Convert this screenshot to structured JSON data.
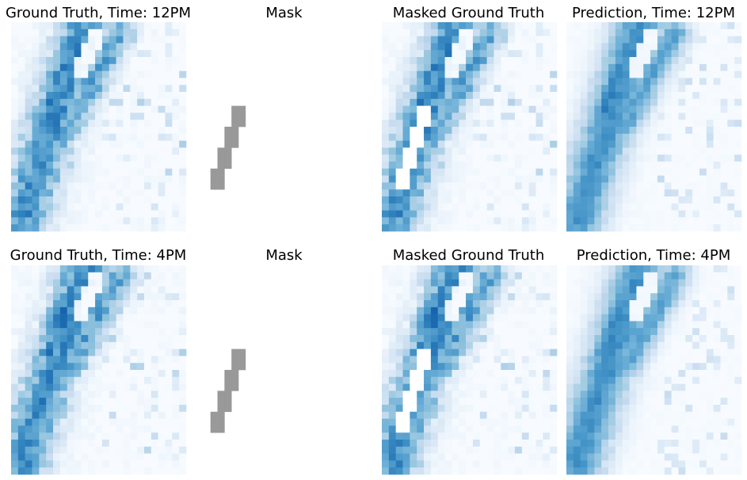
{
  "chart_data": [
    {
      "type": "heatmap",
      "title": "Ground Truth, Time: 12PM",
      "colormap": "Blues",
      "kind": "ground_truth",
      "time": "12PM"
    },
    {
      "type": "heatmap",
      "title": "Mask",
      "kind": "mask",
      "mask_color": "#999999"
    },
    {
      "type": "heatmap",
      "title": "Masked Ground Truth",
      "colormap": "Blues",
      "kind": "masked_ground_truth",
      "time": "12PM"
    },
    {
      "type": "heatmap",
      "title": "Prediction, Time: 12PM",
      "colormap": "Blues",
      "kind": "prediction",
      "time": "12PM"
    },
    {
      "type": "heatmap",
      "title": "Ground Truth, Time: 4PM",
      "colormap": "Blues",
      "kind": "ground_truth",
      "time": "4PM"
    },
    {
      "type": "heatmap",
      "title": "Mask",
      "kind": "mask",
      "mask_color": "#999999"
    },
    {
      "type": "heatmap",
      "title": "Masked Ground Truth",
      "colormap": "Blues",
      "kind": "masked_ground_truth",
      "time": "4PM"
    },
    {
      "type": "heatmap",
      "title": "Prediction, Time: 4PM",
      "colormap": "Blues",
      "kind": "prediction",
      "time": "4PM"
    }
  ],
  "colors": {
    "blues_low": "#f7fbff",
    "blues_high": "#08306b",
    "mask": "#999999",
    "background": "#ffffff"
  }
}
